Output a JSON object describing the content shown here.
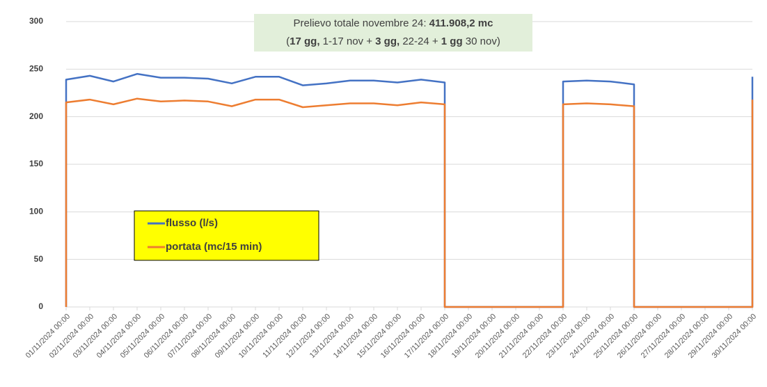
{
  "chart_data": {
    "type": "line",
    "annotation": [
      [
        {
          "text": "Prelievo totale novembre 24: ",
          "bold": false
        },
        {
          "text": "411.908,2 mc",
          "bold": true
        }
      ],
      [
        {
          "text": "(",
          "bold": false
        },
        {
          "text": "17 gg,",
          "bold": true
        },
        {
          "text": " 1-17 nov + ",
          "bold": false
        },
        {
          "text": "3 gg,",
          "bold": true
        },
        {
          "text": " 22-24 + ",
          "bold": false
        },
        {
          "text": "1 gg",
          "bold": true
        },
        {
          "text": " 30 nov)",
          "bold": false
        }
      ]
    ],
    "annotation_color": "#e2efda",
    "x": [
      0,
      0,
      1,
      2,
      3,
      4,
      5,
      6,
      7,
      8,
      9,
      10,
      11,
      12,
      13,
      14,
      15,
      16,
      16,
      21,
      21,
      22,
      23,
      24,
      24,
      29,
      29
    ],
    "series": [
      {
        "name": "flusso (l/s)",
        "color": "#4472c4",
        "values": [
          0,
          239,
          243,
          237,
          245,
          241,
          241,
          240,
          235,
          242,
          242,
          233,
          235,
          238,
          238,
          236,
          239,
          236,
          0,
          0,
          237,
          238,
          237,
          234,
          0,
          0,
          242
        ]
      },
      {
        "name": "portata (mc/15 min)",
        "color": "#ed7d31",
        "values": [
          0,
          215,
          218,
          213,
          219,
          216,
          217,
          216,
          211,
          218,
          218,
          210,
          212,
          214,
          214,
          212,
          215,
          213,
          0,
          0,
          213,
          214,
          213,
          211,
          0,
          0,
          218
        ]
      }
    ],
    "xlim": [
      0,
      29
    ],
    "xticks": [
      {
        "value": 0,
        "label": "01/11/2024 00:00"
      },
      {
        "value": 1,
        "label": "02/11/2024 00:00"
      },
      {
        "value": 2,
        "label": "03/11/2024 00:00"
      },
      {
        "value": 3,
        "label": "04/11/2024 00:00"
      },
      {
        "value": 4,
        "label": "05/11/2024 00:00"
      },
      {
        "value": 5,
        "label": "06/11/2024 00:00"
      },
      {
        "value": 6,
        "label": "07/11/2024 00:00"
      },
      {
        "value": 7,
        "label": "08/11/2024 00:00"
      },
      {
        "value": 8,
        "label": "09/11/2024 00:00"
      },
      {
        "value": 9,
        "label": "10/11/2024 00:00"
      },
      {
        "value": 10,
        "label": "11/11/2024 00:00"
      },
      {
        "value": 11,
        "label": "12/11/2024 00:00"
      },
      {
        "value": 12,
        "label": "13/11/2024 00:00"
      },
      {
        "value": 13,
        "label": "14/11/2024 00:00"
      },
      {
        "value": 14,
        "label": "15/11/2024 00:00"
      },
      {
        "value": 15,
        "label": "16/11/2024 00:00"
      },
      {
        "value": 16,
        "label": "17/11/2024 00:00"
      },
      {
        "value": 17,
        "label": "18/11/2024 00:00"
      },
      {
        "value": 18,
        "label": "19/11/2024 00:00"
      },
      {
        "value": 19,
        "label": "20/11/2024 00:00"
      },
      {
        "value": 20,
        "label": "21/11/2024 00:00"
      },
      {
        "value": 21,
        "label": "22/11/2024 00:00"
      },
      {
        "value": 22,
        "label": "23/11/2024 00:00"
      },
      {
        "value": 23,
        "label": "24/11/2024 00:00"
      },
      {
        "value": 24,
        "label": "25/11/2024 00:00"
      },
      {
        "value": 25,
        "label": "26/11/2024 00:00"
      },
      {
        "value": 26,
        "label": "27/11/2024 00:00"
      },
      {
        "value": 27,
        "label": "28/11/2024 00:00"
      },
      {
        "value": 28,
        "label": "29/11/2024 00:00"
      },
      {
        "value": 29,
        "label": "30/11/2024 00:00"
      }
    ],
    "ylim": [
      0,
      300
    ],
    "yticks": [
      0,
      50,
      100,
      150,
      200,
      250,
      300
    ],
    "grid": true,
    "legend_color": "#ffff00"
  }
}
